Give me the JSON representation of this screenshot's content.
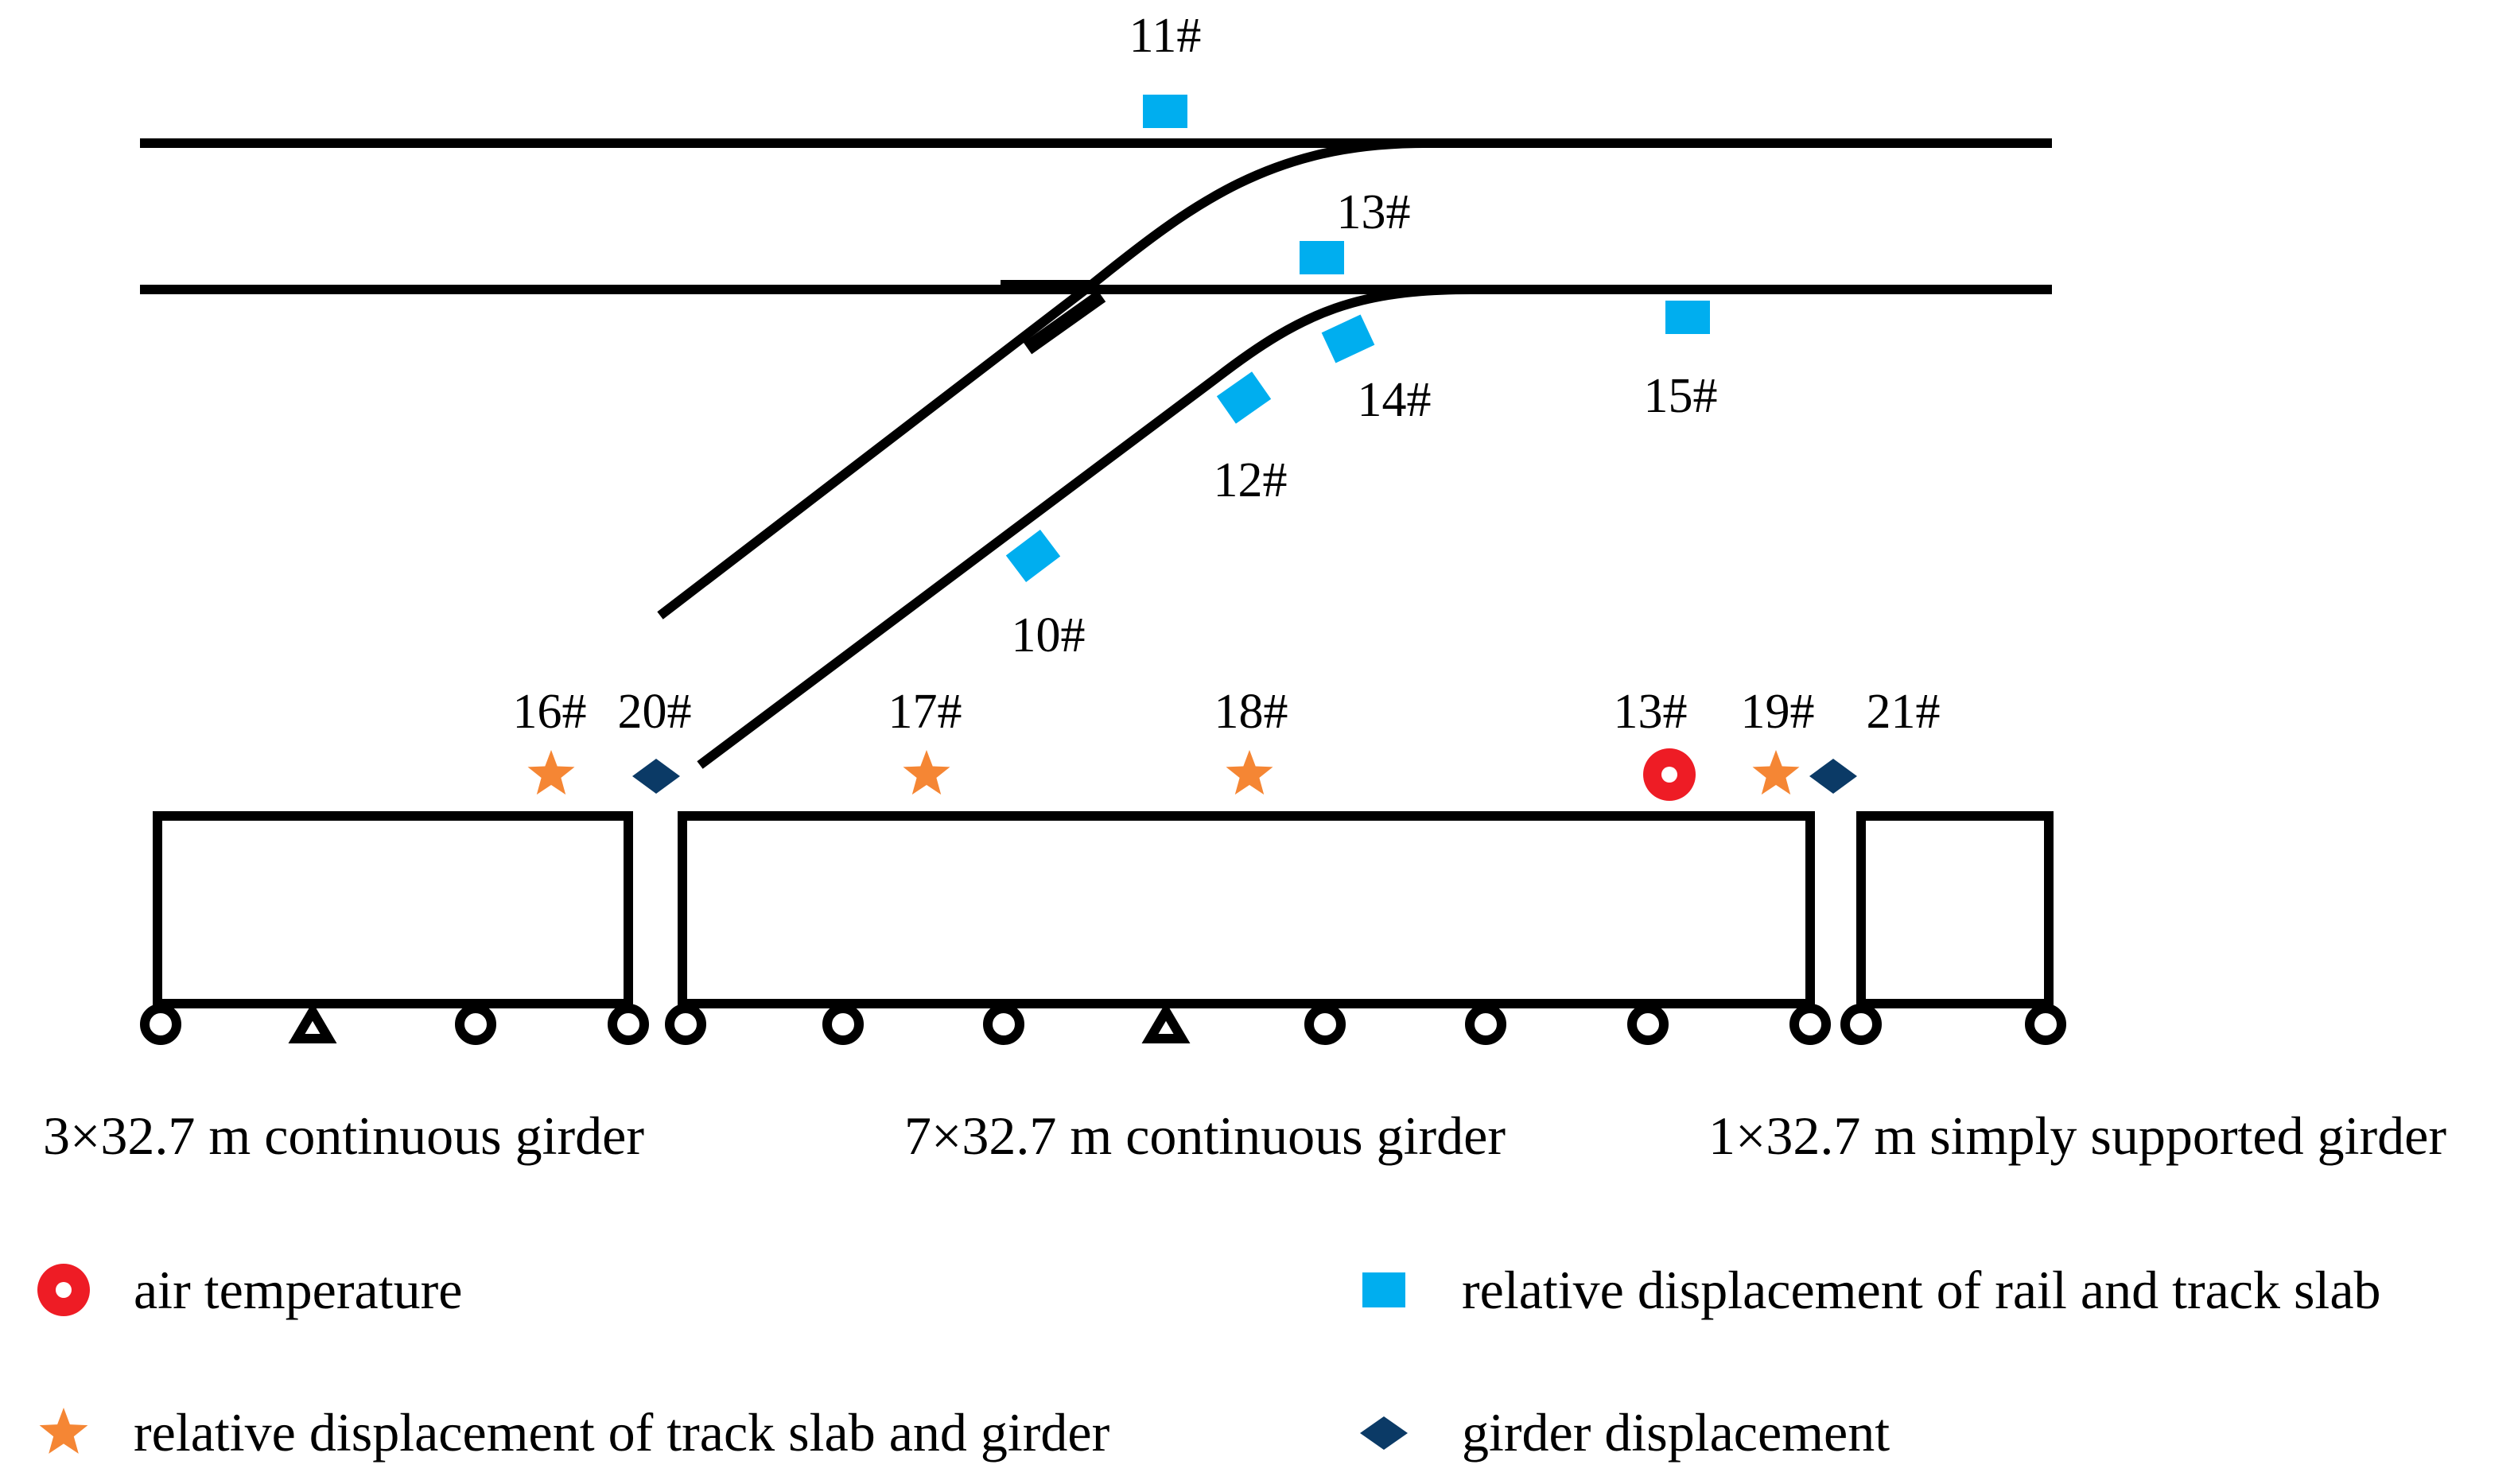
{
  "colors": {
    "line": "#000000",
    "rail_slab_marker": "#00AEEF",
    "slab_girder_marker": "#F58634",
    "girder_marker": "#0B3A66",
    "air_temp_marker": "#EE1C25"
  },
  "sensors": {
    "rail_slab": [
      "11#",
      "13#",
      "15#",
      "14#",
      "12#",
      "10#"
    ],
    "slab_girder": [
      "16#",
      "17#",
      "18#",
      "19#"
    ],
    "girder": [
      "20#",
      "21#"
    ],
    "air_temp": [
      "13#"
    ]
  },
  "girders": [
    {
      "label": "3×32.7 m continuous girder"
    },
    {
      "label": "7×32.7 m continuous girder"
    },
    {
      "label": "1×32.7 m simply supported girder"
    }
  ],
  "legend": {
    "air_temp": "air temperature",
    "rail_slab": "relative displacement of rail and track slab",
    "slab_girder": "relative displacement of track slab and girder",
    "girder": "girder displacement"
  }
}
